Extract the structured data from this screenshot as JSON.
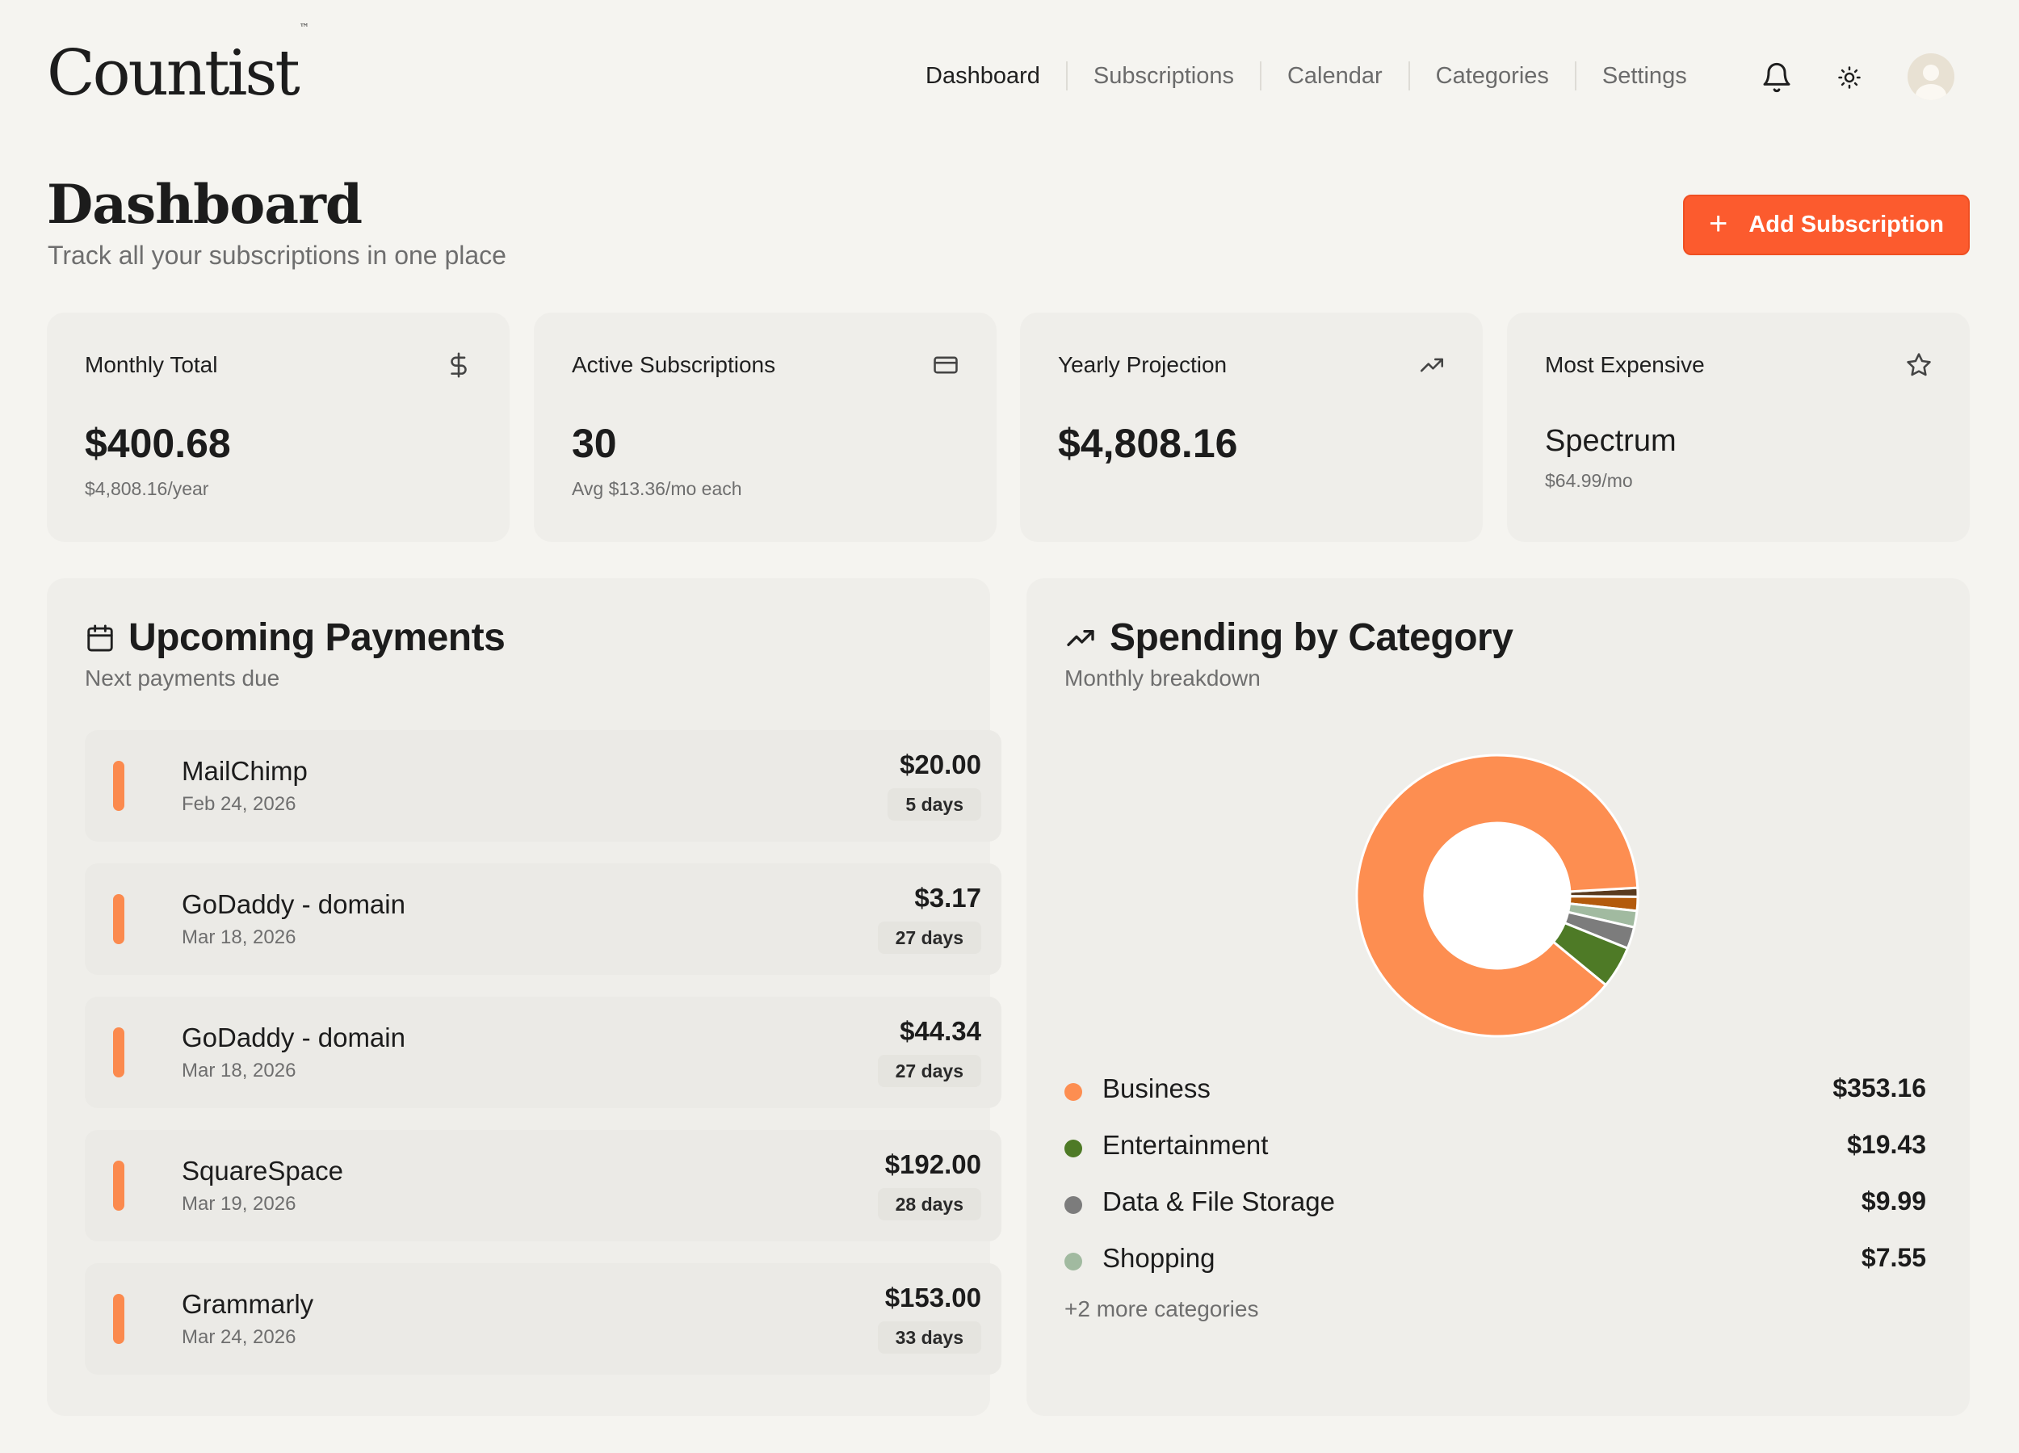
{
  "app": {
    "logo": "Countist",
    "logo_tm": "™"
  },
  "nav": {
    "items": [
      "Dashboard",
      "Subscriptions",
      "Calendar",
      "Categories",
      "Settings"
    ],
    "icons": [
      "bell-icon",
      "sun-icon"
    ]
  },
  "page": {
    "title": "Dashboard",
    "subtitle": "Track all your subscriptions in one place",
    "add_button": "Add Subscription"
  },
  "stats": [
    {
      "label": "Monthly Total",
      "value": "$400.68",
      "sub": "$4,808.16/year",
      "icon": "dollar-icon"
    },
    {
      "label": "Active Subscriptions",
      "value": "30",
      "sub": "Avg $13.36/mo each",
      "icon": "card-icon"
    },
    {
      "label": "Yearly Projection",
      "value": "$4,808.16",
      "sub": "",
      "icon": "trending-up-icon"
    },
    {
      "label": "Most Expensive",
      "value": "Spectrum",
      "sub": "$64.99/mo",
      "icon": "star-icon"
    }
  ],
  "upcoming": {
    "title": "Upcoming Payments",
    "subtitle": "Next payments due",
    "items": [
      {
        "name": "MailChimp",
        "date": "Feb 24, 2026",
        "amount": "$20.00",
        "days": "5 days"
      },
      {
        "name": "GoDaddy - domain",
        "date": "Mar 18, 2026",
        "amount": "$3.17",
        "days": "27 days"
      },
      {
        "name": "GoDaddy - domain",
        "date": "Mar 18, 2026",
        "amount": "$44.34",
        "days": "27 days"
      },
      {
        "name": "SquareSpace",
        "date": "Mar 19, 2026",
        "amount": "$192.00",
        "days": "28 days"
      },
      {
        "name": "Grammarly",
        "date": "Mar 24, 2026",
        "amount": "$153.00",
        "days": "33 days"
      }
    ]
  },
  "spending": {
    "title": "Spending by Category",
    "subtitle": "Monthly breakdown",
    "legend": [
      {
        "name": "Business",
        "value": "$353.16",
        "color": "#fd8e51"
      },
      {
        "name": "Entertainment",
        "value": "$19.43",
        "color": "#4e7a26"
      },
      {
        "name": "Data & File Storage",
        "value": "$9.99",
        "color": "#7c7c7c"
      },
      {
        "name": "Shopping",
        "value": "$7.55",
        "color": "#a1baa0"
      }
    ],
    "more": "+2 more categories"
  },
  "chart_data": {
    "type": "pie",
    "categories": [
      "Business",
      "Entertainment",
      "Data & File Storage",
      "Shopping"
    ],
    "values": [
      353.16,
      19.43,
      9.99,
      7.55
    ],
    "other_slices": [
      {
        "value": 6.45,
        "color": "#b35a0c"
      },
      {
        "value": 4.1,
        "color": "#5a3b1f"
      }
    ],
    "colors": [
      "#fd8e51",
      "#4e7a26",
      "#7c7c7c",
      "#a1baa0"
    ]
  }
}
